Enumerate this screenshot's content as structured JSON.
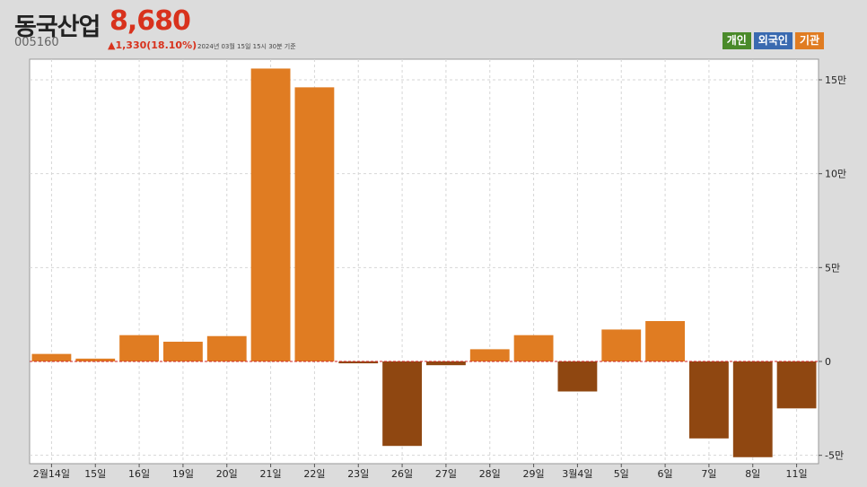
{
  "header": {
    "name": "동국산업",
    "price": "8,680",
    "code": "005160",
    "change": "▲1,330(18.10%)",
    "timestamp": "2024년 03월 15일 15시 30분 기준"
  },
  "legend": [
    {
      "label": "개인",
      "color": "#4a8a2a"
    },
    {
      "label": "외국인",
      "color": "#3a6ab0"
    },
    {
      "label": "기관",
      "color": "#e07c22"
    }
  ],
  "colors": {
    "positive": "#e07c22",
    "negative": "#8f4711",
    "zero_line": "#cc2222",
    "plot_bg": "#ffffff",
    "grid": "#d6d6d6"
  },
  "chart_data": {
    "type": "bar",
    "series_name": "기관",
    "categories": [
      "2월14일",
      "15일",
      "16일",
      "19일",
      "20일",
      "21일",
      "22일",
      "23일",
      "26일",
      "27일",
      "28일",
      "29일",
      "3월4일",
      "5일",
      "6일",
      "7일",
      "8일",
      "11일"
    ],
    "values": [
      4000,
      1500,
      14000,
      10500,
      13500,
      156000,
      146000,
      -1000,
      -45000,
      -2000,
      6500,
      14000,
      -16000,
      17000,
      21500,
      -41000,
      -51000,
      -25000
    ],
    "ylim": [
      -55000,
      160000
    ],
    "yticks": [
      {
        "value": 150000,
        "label": "15만"
      },
      {
        "value": 100000,
        "label": "10만"
      },
      {
        "value": 50000,
        "label": "5만"
      },
      {
        "value": 0,
        "label": "0"
      },
      {
        "value": -50000,
        "label": "-5만"
      }
    ],
    "grid": true,
    "axis_position": "right"
  }
}
